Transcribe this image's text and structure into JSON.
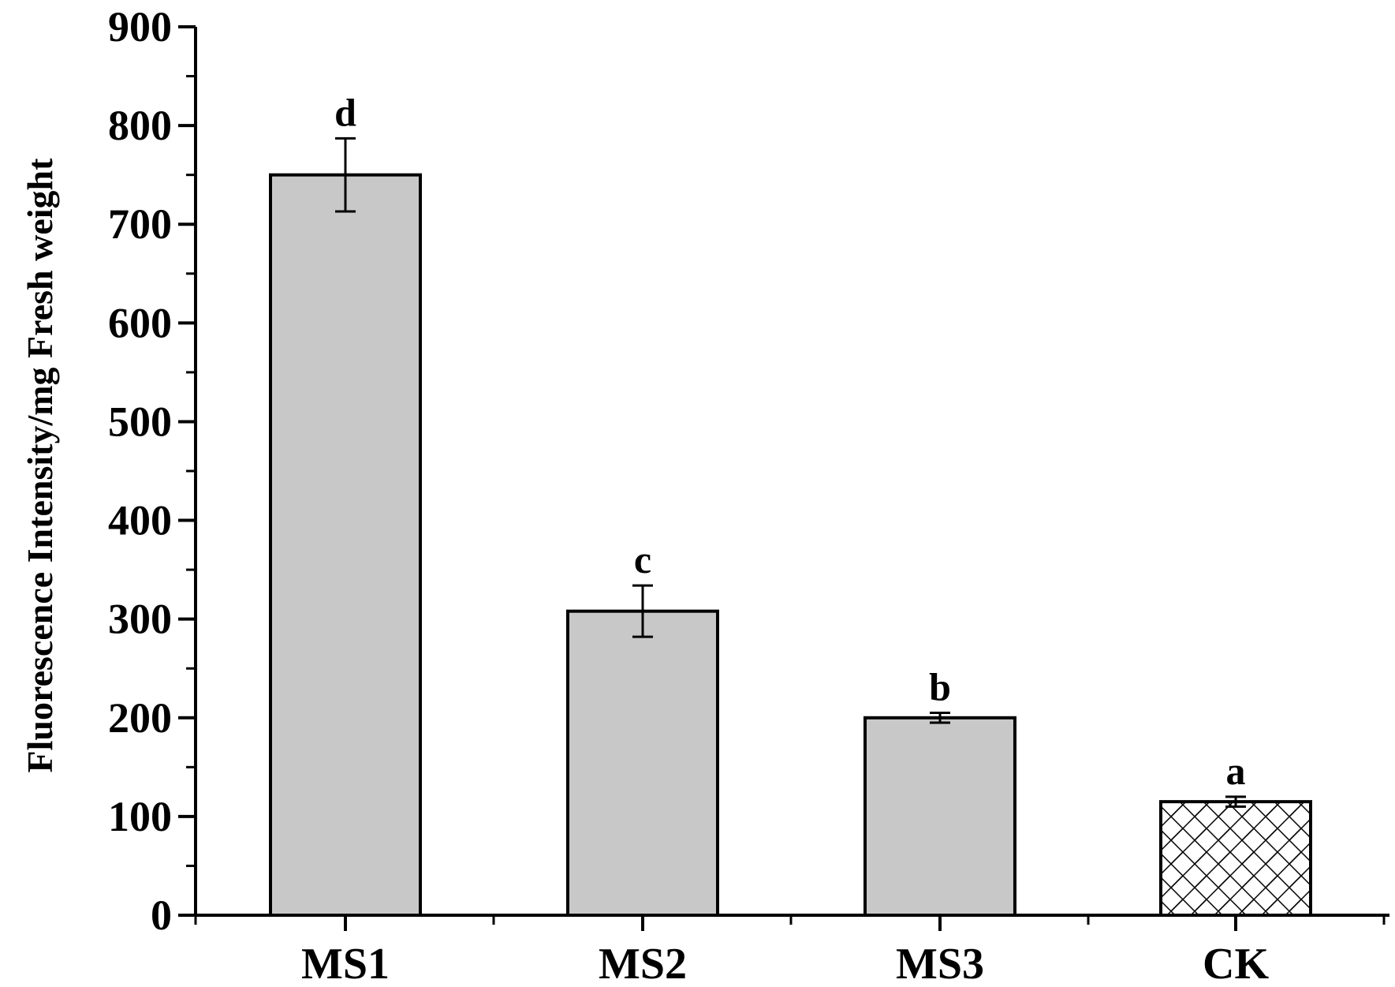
{
  "chart_data": {
    "type": "bar",
    "categories": [
      "MS1",
      "MS2",
      "MS3",
      "CK"
    ],
    "series": [
      {
        "values": [
          750,
          308,
          200,
          115
        ],
        "errors": [
          37,
          26,
          5,
          5
        ],
        "significance": [
          "d",
          "c",
          "b",
          "a"
        ],
        "fills": [
          "solid",
          "solid",
          "solid",
          "crosshatch"
        ]
      }
    ],
    "title": "",
    "xlabel": "",
    "ylabel": "Fluorescence Intensity/mg Fresh weight",
    "ylim": [
      0,
      900
    ],
    "yticks": [
      0,
      100,
      200,
      300,
      400,
      500,
      600,
      700,
      800,
      900
    ],
    "grid": false,
    "legend": "none"
  },
  "colors": {
    "bar_fill": "#c8c8c8",
    "ck_fill": "#ffffff",
    "stroke": "#000000"
  }
}
